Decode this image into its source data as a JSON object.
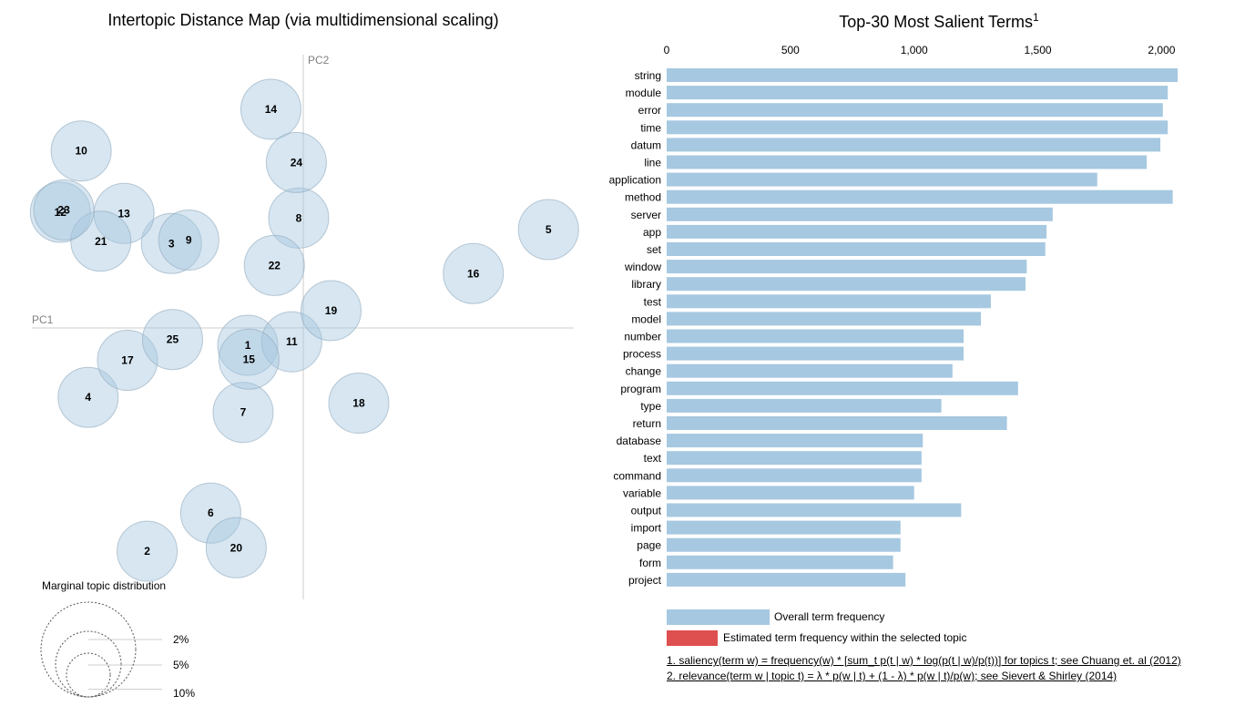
{
  "chart_data": [
    {
      "type": "scatter",
      "title": "Intertopic Distance Map (via multidimensional scaling)",
      "xlabel": "PC1",
      "ylabel": "PC2",
      "points": [
        {
          "topic": "1",
          "x": -0.048,
          "y": -0.015
        },
        {
          "topic": "2",
          "x": -0.135,
          "y": -0.193
        },
        {
          "topic": "3",
          "x": -0.114,
          "y": 0.073
        },
        {
          "topic": "4",
          "x": -0.186,
          "y": -0.06
        },
        {
          "topic": "5",
          "x": 0.212,
          "y": 0.085
        },
        {
          "topic": "6",
          "x": -0.08,
          "y": -0.16
        },
        {
          "topic": "7",
          "x": -0.052,
          "y": -0.073
        },
        {
          "topic": "8",
          "x": -0.004,
          "y": 0.095
        },
        {
          "topic": "9",
          "x": -0.099,
          "y": 0.076
        },
        {
          "topic": "10",
          "x": -0.192,
          "y": 0.153
        },
        {
          "topic": "11",
          "x": -0.01,
          "y": -0.012
        },
        {
          "topic": "12",
          "x": -0.21,
          "y": 0.1
        },
        {
          "topic": "13",
          "x": -0.155,
          "y": 0.099
        },
        {
          "topic": "14",
          "x": -0.028,
          "y": 0.189
        },
        {
          "topic": "15",
          "x": -0.047,
          "y": -0.027
        },
        {
          "topic": "16",
          "x": 0.147,
          "y": 0.047
        },
        {
          "topic": "17",
          "x": -0.152,
          "y": -0.028
        },
        {
          "topic": "18",
          "x": 0.048,
          "y": -0.065
        },
        {
          "topic": "19",
          "x": 0.024,
          "y": 0.015
        },
        {
          "topic": "20",
          "x": -0.058,
          "y": -0.19
        },
        {
          "topic": "21",
          "x": -0.175,
          "y": 0.075
        },
        {
          "topic": "22",
          "x": -0.025,
          "y": 0.054
        },
        {
          "topic": "23",
          "x": -0.207,
          "y": 0.102
        },
        {
          "topic": "24",
          "x": -0.006,
          "y": 0.143
        },
        {
          "topic": "25",
          "x": -0.113,
          "y": -0.01
        }
      ],
      "marginal_legend": {
        "title": "Marginal topic distribution",
        "levels": [
          "2%",
          "5%",
          "10%"
        ]
      }
    },
    {
      "type": "bar",
      "title": "Top-30 Most Salient Terms",
      "title_superscript": "1",
      "xlim": [
        0,
        2000
      ],
      "ticks": [
        "0",
        "500",
        "1,000",
        "1,500",
        "2,000"
      ],
      "categories": [
        "string",
        "module",
        "error",
        "time",
        "datum",
        "line",
        "application",
        "method",
        "server",
        "app",
        "set",
        "window",
        "library",
        "test",
        "model",
        "number",
        "process",
        "change",
        "program",
        "type",
        "return",
        "database",
        "text",
        "command",
        "variable",
        "output",
        "import",
        "page",
        "form",
        "project"
      ],
      "series": [
        {
          "name": "Overall term frequency",
          "values": [
            2065,
            2025,
            2005,
            2025,
            1995,
            1940,
            1740,
            2045,
            1560,
            1535,
            1530,
            1455,
            1450,
            1310,
            1270,
            1200,
            1200,
            1155,
            1420,
            1110,
            1375,
            1035,
            1030,
            1030,
            1000,
            1190,
            945,
            945,
            915,
            965
          ]
        }
      ],
      "legend": [
        {
          "label": "Overall term frequency",
          "color": "#a6c8e0"
        },
        {
          "label": "Estimated term frequency within the selected topic",
          "color": "#de4f4f"
        }
      ]
    }
  ],
  "footnotes": {
    "saliency": "1. saliency(term w) = frequency(w) * [sum_t p(t | w) * log(p(t | w)/p(t))] for topics t; see Chuang et. al (2012)",
    "relevance": "2. relevance(term w | topic t) = λ * p(w | t) + (1 - λ) * p(w | t)/p(w); see Sievert & Shirley (2014)"
  }
}
